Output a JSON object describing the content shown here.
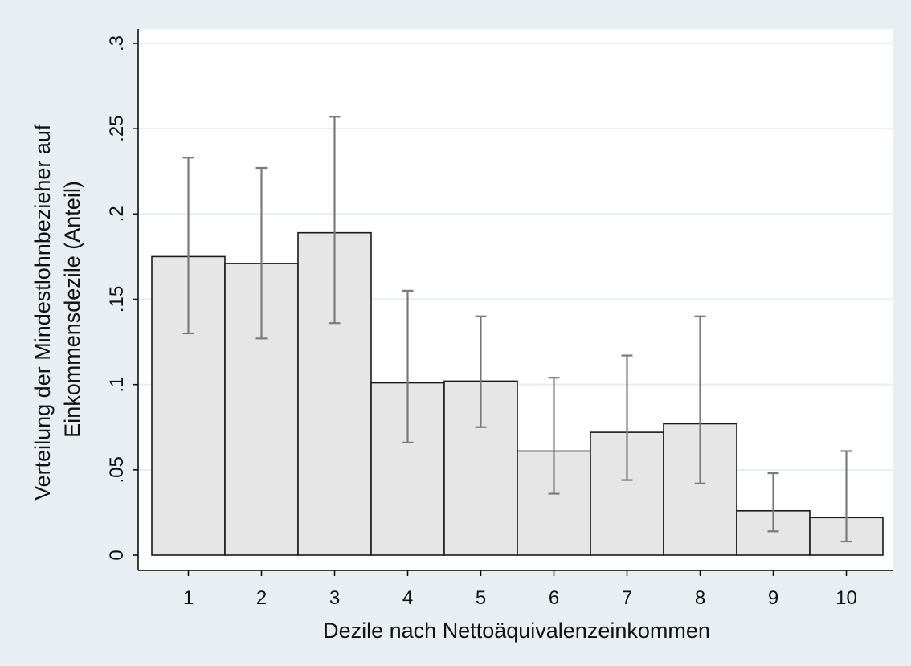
{
  "chart_data": {
    "type": "bar",
    "xlabel": "Dezile nach Nettoäquivalenzeinkommen",
    "ylabel_lines": [
      "Verteilung der Mindestlohnbezieher auf",
      "Einkommensdezile (Anteil)"
    ],
    "categories": [
      "1",
      "2",
      "3",
      "4",
      "5",
      "6",
      "7",
      "8",
      "9",
      "10"
    ],
    "values": [
      0.175,
      0.171,
      0.189,
      0.101,
      0.102,
      0.061,
      0.072,
      0.077,
      0.026,
      0.022
    ],
    "ci_lower": [
      0.13,
      0.127,
      0.136,
      0.066,
      0.075,
      0.036,
      0.044,
      0.042,
      0.014,
      0.008
    ],
    "ci_upper": [
      0.233,
      0.227,
      0.257,
      0.155,
      0.14,
      0.104,
      0.117,
      0.14,
      0.048,
      0.061
    ],
    "yticks": [
      0,
      0.05,
      0.1,
      0.15,
      0.2,
      0.25,
      0.3
    ],
    "ytick_labels": [
      "0",
      ".05",
      ".1",
      ".15",
      ".2",
      ".25",
      ".3"
    ],
    "ylim": [
      0,
      0.3
    ],
    "grid": true,
    "colors": {
      "outer_background": "#e8eef1",
      "plot_background": "#ffffff",
      "bar_fill": "#e6e6e6",
      "bar_stroke": "#1a1a1a",
      "error_bar": "#7a7a7a",
      "grid": "#e8eef1",
      "axis": "#000000"
    }
  }
}
